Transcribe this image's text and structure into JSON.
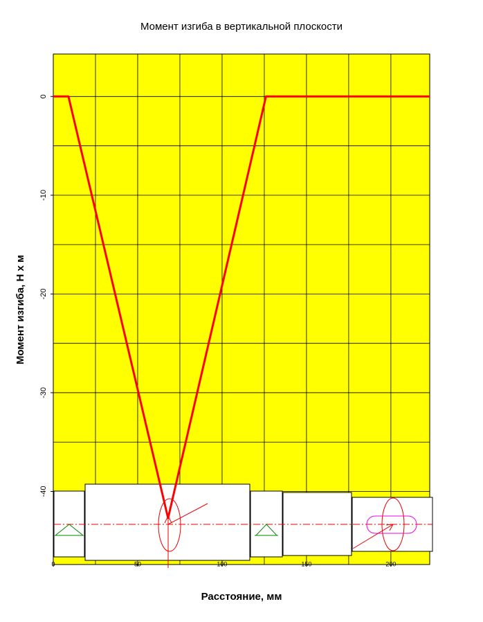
{
  "chart_data": {
    "type": "line",
    "title": "Момент изгиба в вертикальной плоскости",
    "x_label": "Расстояние, мм",
    "y_label": "Момент изгиба, Н х м",
    "x": [
      0,
      9,
      68,
      126,
      223
    ],
    "values": [
      0,
      0,
      -42.7,
      0,
      0
    ],
    "color": "#ff0000",
    "background": "#ffff00",
    "xlim": [
      0,
      223
    ],
    "ylim": [
      -47.4,
      4.3
    ],
    "xticks": [
      0,
      50,
      100,
      150,
      200
    ],
    "yticks": [
      0,
      -10,
      -20,
      -30,
      -40
    ],
    "xgrid": [
      25,
      50,
      75,
      100,
      125,
      150,
      175,
      200
    ],
    "ygrid": [
      0,
      -5,
      -10,
      -15,
      -20,
      -25,
      -30,
      -35,
      -40,
      -45
    ],
    "grid": true
  }
}
